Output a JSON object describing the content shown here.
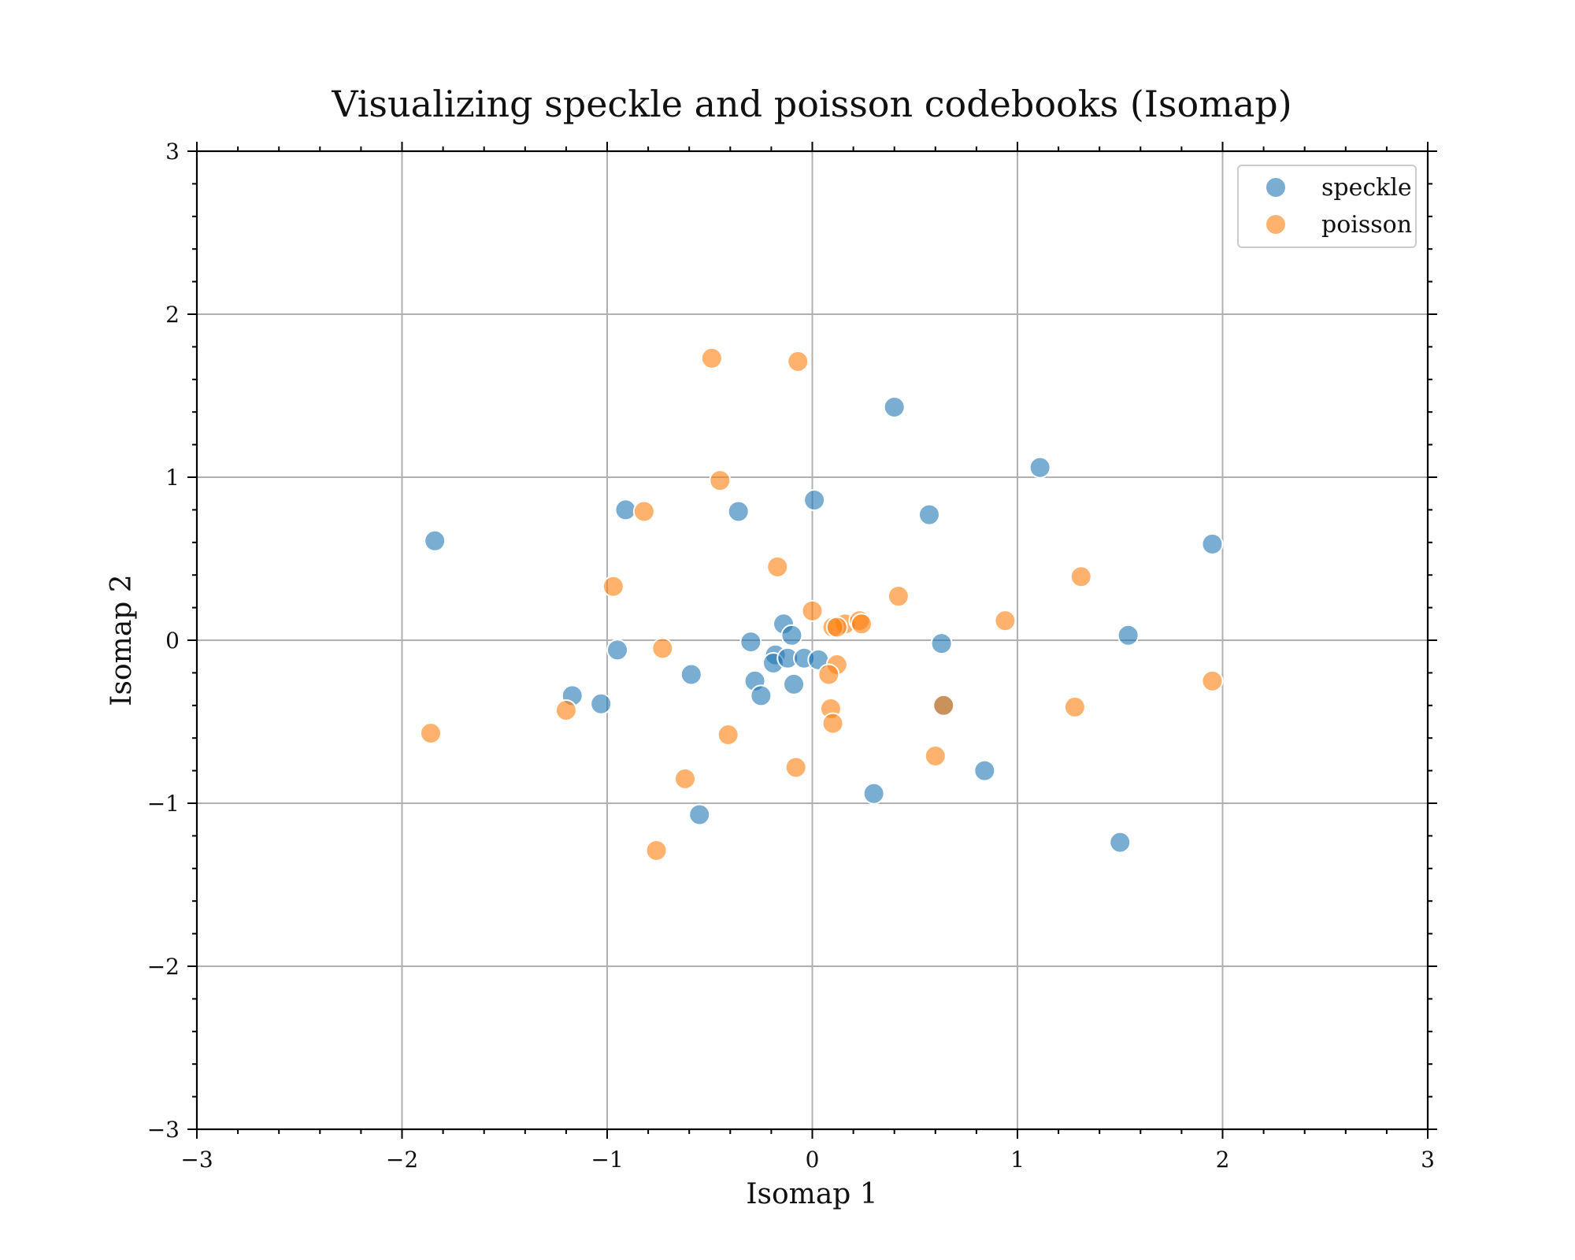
{
  "chart_data": {
    "type": "scatter",
    "title": "Visualizing speckle and poisson codebooks (Isomap)",
    "xlabel": "Isomap 1",
    "ylabel": "Isomap 2",
    "xlim": [
      -3,
      3
    ],
    "ylim": [
      -3,
      3
    ],
    "xticks": [
      -3,
      -2,
      -1,
      0,
      1,
      2,
      3
    ],
    "yticks": [
      -3,
      -2,
      -1,
      0,
      1,
      2,
      3
    ],
    "xtick_labels": [
      "−3",
      "−2",
      "−1",
      "0",
      "1",
      "2",
      "3"
    ],
    "ytick_labels": [
      "−3",
      "−2",
      "−1",
      "0",
      "1",
      "2",
      "3"
    ],
    "grid": true,
    "legend_position": "top-right",
    "series": [
      {
        "name": "speckle",
        "color": "#1f77b4",
        "points": [
          [
            -1.84,
            0.61
          ],
          [
            -0.91,
            0.8
          ],
          [
            -0.36,
            0.79
          ],
          [
            0.01,
            0.86
          ],
          [
            0.4,
            1.43
          ],
          [
            0.57,
            0.77
          ],
          [
            1.11,
            1.06
          ],
          [
            1.95,
            0.59
          ],
          [
            1.54,
            0.03
          ],
          [
            0.63,
            -0.02
          ],
          [
            -0.95,
            -0.06
          ],
          [
            -1.17,
            -0.34
          ],
          [
            -1.03,
            -0.39
          ],
          [
            -0.59,
            -0.21
          ],
          [
            -0.3,
            -0.01
          ],
          [
            -0.14,
            0.1
          ],
          [
            -0.1,
            0.03
          ],
          [
            -0.18,
            -0.09
          ],
          [
            -0.19,
            -0.14
          ],
          [
            -0.12,
            -0.11
          ],
          [
            -0.04,
            -0.11
          ],
          [
            0.03,
            -0.12
          ],
          [
            -0.28,
            -0.25
          ],
          [
            -0.25,
            -0.34
          ],
          [
            -0.09,
            -0.27
          ],
          [
            0.84,
            -0.8
          ],
          [
            0.3,
            -0.94
          ],
          [
            -0.55,
            -1.07
          ],
          [
            1.5,
            -1.24
          ],
          [
            0.64,
            -0.4
          ]
        ]
      },
      {
        "name": "poisson",
        "color": "#ff7f0e",
        "points": [
          [
            -0.49,
            1.73
          ],
          [
            -0.07,
            1.71
          ],
          [
            -0.45,
            0.98
          ],
          [
            -0.82,
            0.79
          ],
          [
            -0.17,
            0.45
          ],
          [
            -0.97,
            0.33
          ],
          [
            0.0,
            0.18
          ],
          [
            0.42,
            0.27
          ],
          [
            0.94,
            0.12
          ],
          [
            1.31,
            0.39
          ],
          [
            0.16,
            0.1
          ],
          [
            0.23,
            0.12
          ],
          [
            0.24,
            0.1
          ],
          [
            0.1,
            0.08
          ],
          [
            0.12,
            0.08
          ],
          [
            -0.73,
            -0.05
          ],
          [
            0.12,
            -0.15
          ],
          [
            0.08,
            -0.21
          ],
          [
            1.95,
            -0.25
          ],
          [
            0.09,
            -0.42
          ],
          [
            0.1,
            -0.51
          ],
          [
            -1.2,
            -0.43
          ],
          [
            -1.86,
            -0.57
          ],
          [
            -0.41,
            -0.58
          ],
          [
            0.64,
            -0.4
          ],
          [
            1.28,
            -0.41
          ],
          [
            0.6,
            -0.71
          ],
          [
            -0.08,
            -0.78
          ],
          [
            -0.62,
            -0.85
          ],
          [
            -0.76,
            -1.29
          ]
        ]
      }
    ]
  }
}
